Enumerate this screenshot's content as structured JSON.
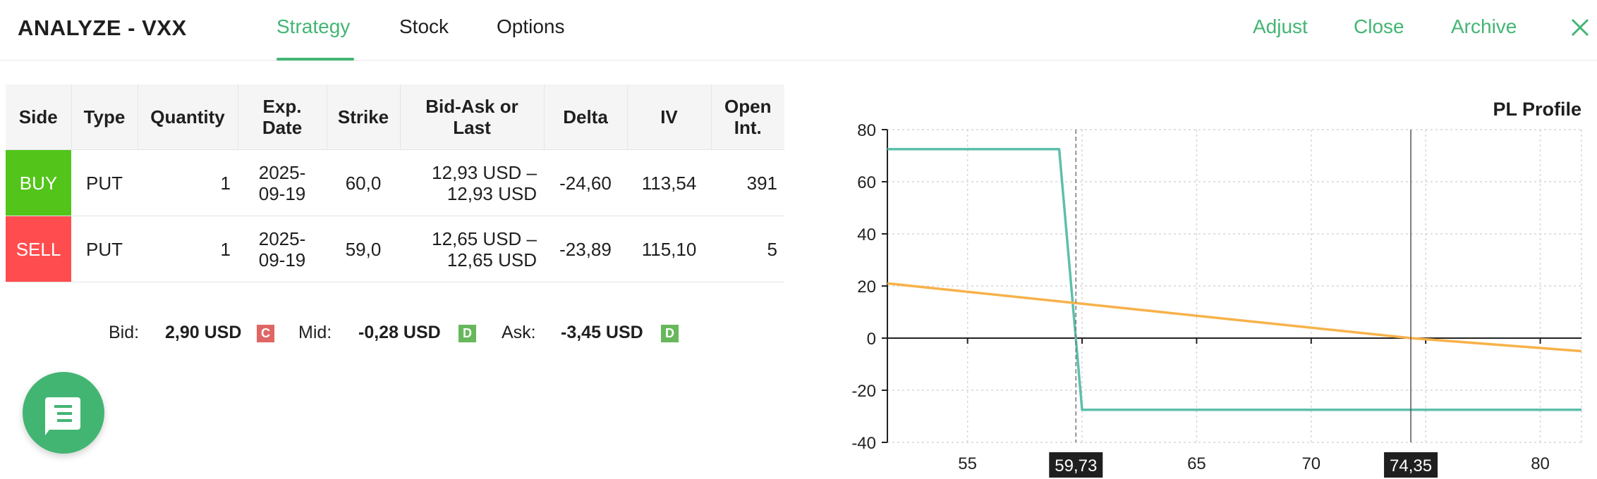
{
  "header": {
    "title": "ANALYZE - VXX",
    "tabs": [
      "Strategy",
      "Stock",
      "Options"
    ],
    "active_tab": "Strategy",
    "actions": [
      "Adjust",
      "Close",
      "Archive"
    ],
    "accent_color": "#43b573"
  },
  "table": {
    "headers": [
      "Side",
      "Type",
      "Quantity",
      "Exp. Date",
      "Strike",
      "Bid-Ask or Last",
      "Delta",
      "IV",
      "Open Int."
    ],
    "rows": [
      {
        "side": "BUY",
        "side_color": "#52c41a",
        "type": "PUT",
        "quantity": "1",
        "exp_line1": "2025-",
        "exp_line2": "09-19",
        "strike": "60,0",
        "bidask_line1": "12,93 USD –",
        "bidask_line2": "12,93 USD",
        "delta": "-24,60",
        "iv": "113,54",
        "open_int": "391"
      },
      {
        "side": "SELL",
        "side_color": "#ff4d4f",
        "type": "PUT",
        "quantity": "1",
        "exp_line1": "2025-",
        "exp_line2": "09-19",
        "strike": "59,0",
        "bidask_line1": "12,65 USD –",
        "bidask_line2": "12,65 USD",
        "delta": "-23,89",
        "iv": "115,10",
        "open_int": "5"
      }
    ]
  },
  "summary": {
    "bid_label": "Bid:",
    "bid_value": "2,90 USD",
    "bid_badge": "C",
    "mid_label": "Mid:",
    "mid_value": "-0,28 USD",
    "mid_badge": "D",
    "ask_label": "Ask:",
    "ask_value": "-3,45 USD",
    "ask_badge": "D"
  },
  "chat_button": {
    "icon": "chat-icon"
  },
  "chart_data": {
    "type": "line",
    "title": "PL Profile",
    "xlim": [
      51.5,
      81.8
    ],
    "ylim": [
      -40,
      80
    ],
    "x_ticks": [
      55,
      60,
      65,
      70,
      75,
      80
    ],
    "x_tick_labels": [
      "55",
      "",
      "65",
      "70",
      "",
      "80"
    ],
    "y_ticks": [
      80,
      60,
      40,
      20,
      0,
      -20,
      -40
    ],
    "grid": true,
    "markers": [
      {
        "x": 59.73,
        "label": "59,73",
        "style": "dashed"
      },
      {
        "x": 74.35,
        "label": "74,35",
        "style": "solid"
      }
    ],
    "series": [
      {
        "color": "#5dbfab",
        "x": [
          51.5,
          59.0,
          60.0,
          81.8
        ],
        "y": [
          72.5,
          72.5,
          -27.5,
          -27.5
        ]
      },
      {
        "color": "#f7b24a",
        "x": [
          51.5,
          74.35,
          81.8
        ],
        "y": [
          21,
          0,
          -5
        ]
      }
    ]
  }
}
